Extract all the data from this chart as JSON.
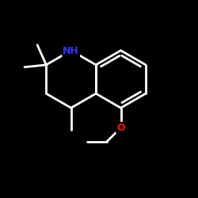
{
  "bg_color": "#000000",
  "bond_color": "#ffffff",
  "N_color": "#3333ff",
  "O_color": "#ff1100",
  "bond_width": 2.0,
  "figsize": [
    2.5,
    2.5
  ],
  "dpi": 100,
  "xlim": [
    0,
    10
  ],
  "ylim": [
    0,
    10
  ]
}
